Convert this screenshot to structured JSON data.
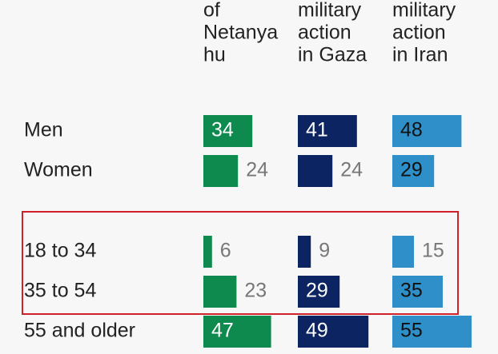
{
  "chart_data": {
    "type": "bar",
    "categories": [
      "Men",
      "Women",
      "18 to 34",
      "35 to 54",
      "55 and older"
    ],
    "series": [
      {
        "header": [
          "of",
          "Netanya",
          "hu"
        ],
        "color": "#0f8a4f",
        "label_color": "#ffffff",
        "values": [
          34,
          24,
          6,
          23,
          47
        ]
      },
      {
        "header": [
          "military",
          "action",
          "in Gaza"
        ],
        "color": "#0c2461",
        "label_color": "#ffffff",
        "values": [
          41,
          24,
          9,
          29,
          49
        ]
      },
      {
        "header": [
          "military",
          "action",
          "in Iran"
        ],
        "color": "#2e8fc9",
        "label_color": "#111111",
        "values": [
          48,
          29,
          15,
          35,
          55
        ]
      }
    ]
  }
}
